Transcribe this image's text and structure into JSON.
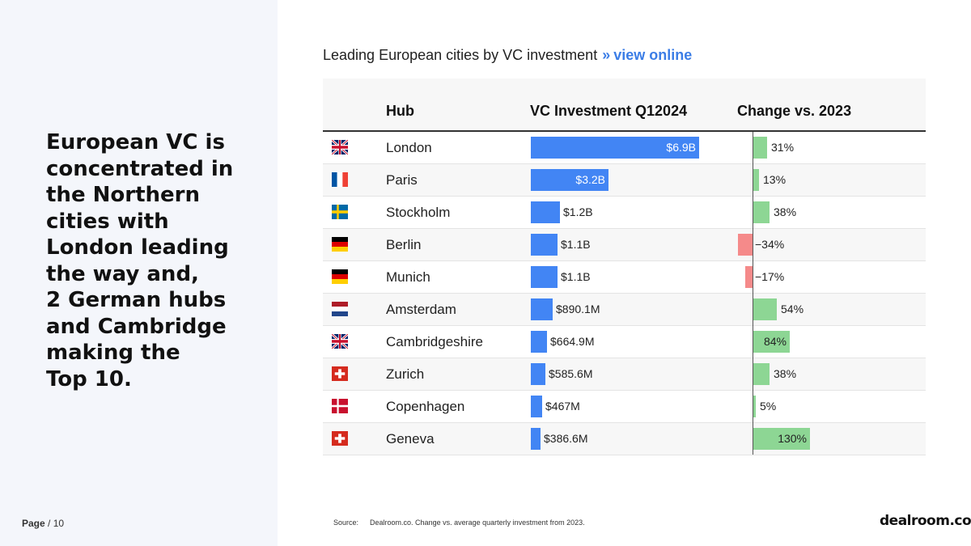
{
  "headline": "European VC is\nconcentrated in\nthe Northern\ncities with\nLondon leading\nthe way and,\n2 German hubs\nand Cambridge\nmaking the\nTop 10.",
  "footer": {
    "page_label": "Page",
    "page_suffix": "/ 10"
  },
  "chart_title": {
    "text": "Leading European cities by VC investment",
    "arrow": "»",
    "link": "view online"
  },
  "source": {
    "label": "Source:",
    "text": "Dealroom.co. Change vs. average quarterly investment from 2023."
  },
  "logo": "dealroom.co",
  "colors": {
    "investment_bar": "#4285f4",
    "positive_change": "#8dd694",
    "negative_change": "#f58a8a",
    "link": "#3b7de6"
  },
  "chart_data": {
    "type": "table",
    "columns": [
      "Hub",
      "VC Investment Q12024",
      "Change vs. 2023"
    ],
    "rows": [
      {
        "flag": "uk-flag-icon",
        "hub": "London",
        "investment": 6.9,
        "investment_label": "$6.9B",
        "change": 31,
        "change_label": "31%"
      },
      {
        "flag": "france-flag-icon",
        "hub": "Paris",
        "investment": 3.2,
        "investment_label": "$3.2B",
        "change": 13,
        "change_label": "13%"
      },
      {
        "flag": "sweden-flag-icon",
        "hub": "Stockholm",
        "investment": 1.2,
        "investment_label": "$1.2B",
        "change": 38,
        "change_label": "38%"
      },
      {
        "flag": "germany-flag-icon",
        "hub": "Berlin",
        "investment": 1.1,
        "investment_label": "$1.1B",
        "change": -34,
        "change_label": "−34%"
      },
      {
        "flag": "germany-flag-icon",
        "hub": "Munich",
        "investment": 1.1,
        "investment_label": "$1.1B",
        "change": -17,
        "change_label": "−17%"
      },
      {
        "flag": "netherlands-flag-icon",
        "hub": "Amsterdam",
        "investment": 0.8901,
        "investment_label": "$890.1M",
        "change": 54,
        "change_label": "54%"
      },
      {
        "flag": "uk-flag-icon",
        "hub": "Cambridgeshire",
        "investment": 0.6649,
        "investment_label": "$664.9M",
        "change": 84,
        "change_label": "84%"
      },
      {
        "flag": "switzerland-flag-icon",
        "hub": "Zurich",
        "investment": 0.5856,
        "investment_label": "$585.6M",
        "change": 38,
        "change_label": "38%"
      },
      {
        "flag": "denmark-flag-icon",
        "hub": "Copenhagen",
        "investment": 0.467,
        "investment_label": "$467M",
        "change": 5,
        "change_label": "5%"
      },
      {
        "flag": "switzerland-flag-icon",
        "hub": "Geneva",
        "investment": 0.3866,
        "investment_label": "$386.6M",
        "change": 130,
        "change_label": "130%"
      }
    ]
  }
}
